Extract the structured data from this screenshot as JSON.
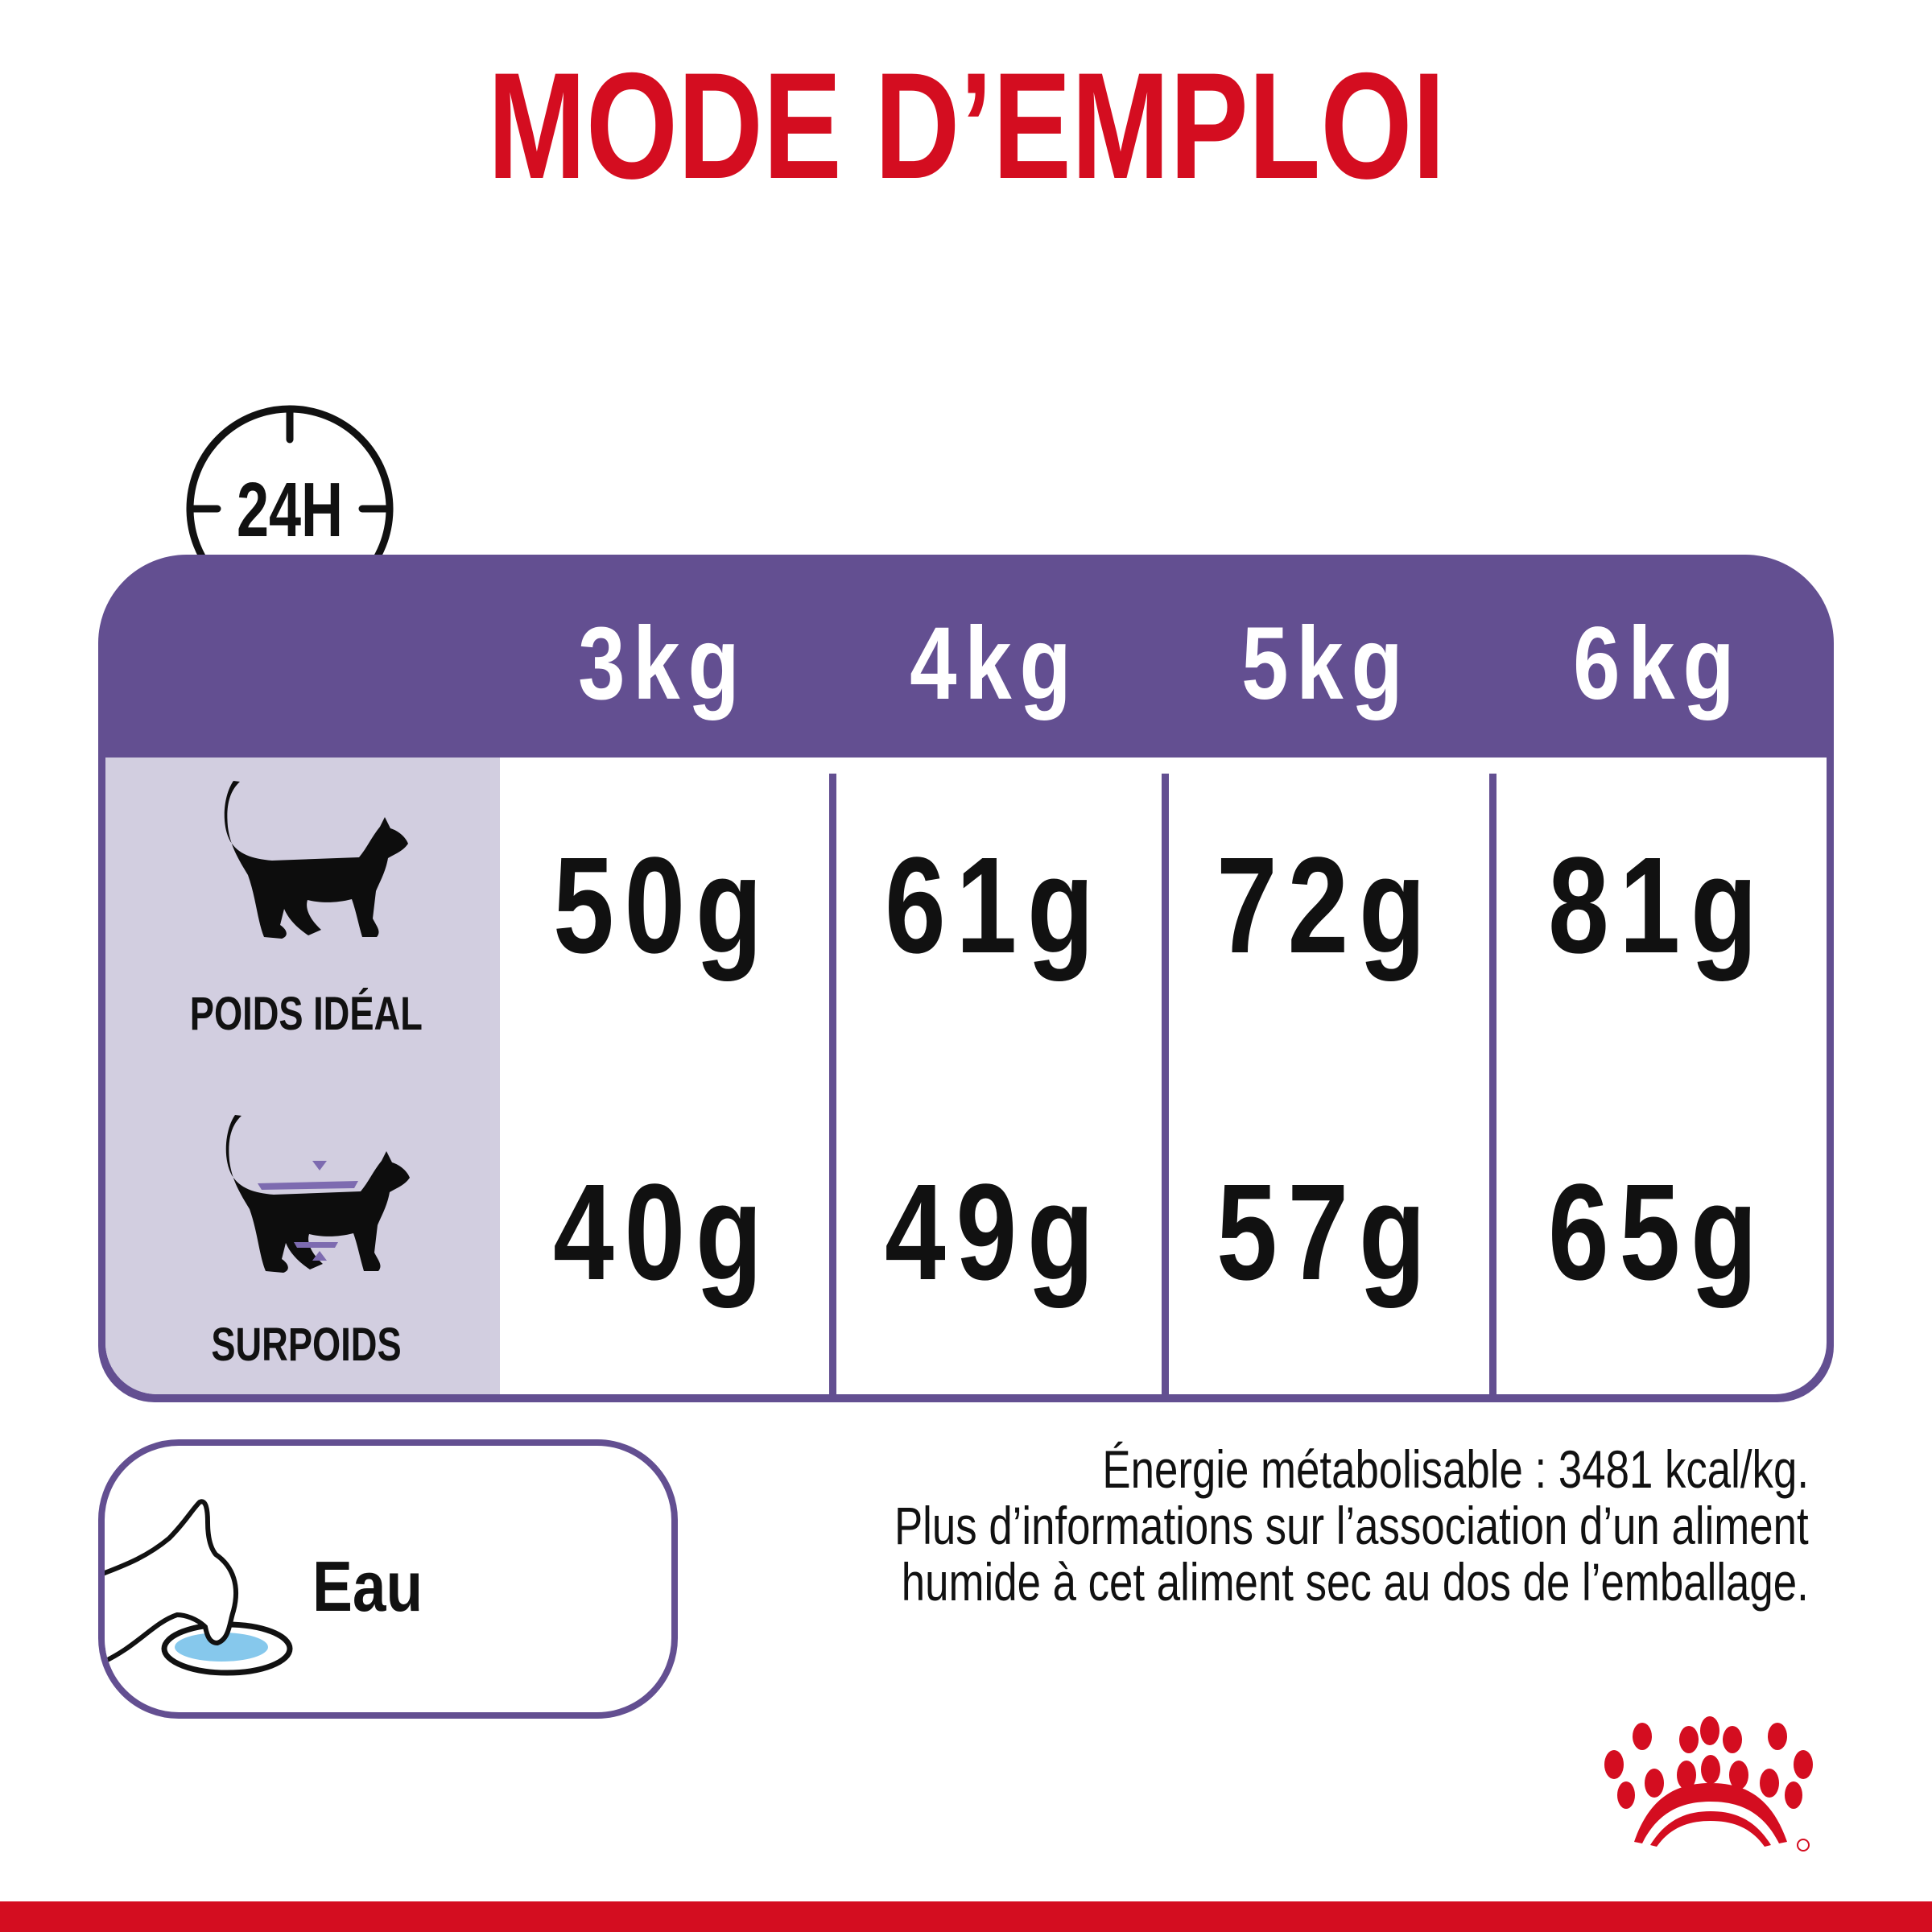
{
  "title": "MODE D’EMPLOI",
  "clock_label": "24H",
  "table": {
    "columns": [
      "3kg",
      "4kg",
      "5kg",
      "6kg"
    ],
    "rows": [
      {
        "label": "POIDS IDÉAL",
        "icon": "cat-ideal-weight-icon",
        "values": [
          "50g",
          "61g",
          "72g",
          "81g"
        ]
      },
      {
        "label": "SURPOIDS",
        "icon": "cat-overweight-icon",
        "values": [
          "40g",
          "49g",
          "57g",
          "65g"
        ]
      }
    ]
  },
  "water": {
    "label": "Eau",
    "icon": "cat-drinking-water-icon"
  },
  "info": [
    "Énergie métabolisable : 3481 kcal/kg.",
    "Plus d’informations sur l’association d’un aliment",
    "humide à cet aliment sec au dos de l’emballage."
  ],
  "colors": {
    "brand_red": "#d40d20",
    "purple": "#634f91",
    "lavender": "#d2cee0",
    "water_blue": "#86c8ec"
  }
}
